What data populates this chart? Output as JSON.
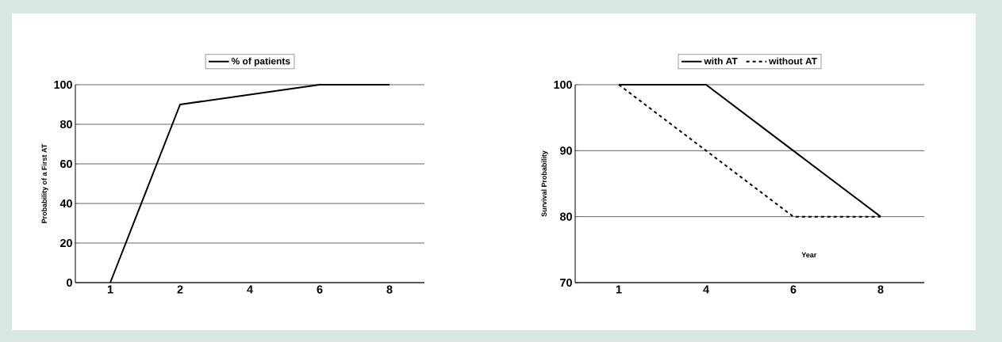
{
  "chart_data": [
    {
      "type": "line",
      "categories": [
        "1",
        "2",
        "4",
        "6",
        "8"
      ],
      "ylabel": "Probability of a First AT",
      "ylim": [
        0,
        100
      ],
      "yticks": [
        0,
        20,
        40,
        60,
        80,
        100
      ],
      "grid": "y",
      "legend": "top",
      "series": [
        {
          "name": "% of patients",
          "color": "#000000",
          "line_style": "solid",
          "values": [
            0,
            90,
            95,
            100,
            100
          ]
        }
      ]
    },
    {
      "type": "line",
      "categories": [
        "1",
        "4",
        "6",
        "8"
      ],
      "xlabel": "Year",
      "ylabel": "Survival Probability",
      "ylim": [
        70,
        100
      ],
      "yticks": [
        70,
        80,
        90,
        100
      ],
      "grid": "y",
      "legend": "top",
      "series": [
        {
          "name": "with AT",
          "color": "#000000",
          "line_style": "solid",
          "values": [
            100,
            100,
            90,
            80
          ]
        },
        {
          "name": "without AT",
          "color": "#000000",
          "line_style": "dashed",
          "values": [
            100,
            90,
            80,
            80
          ]
        }
      ]
    }
  ]
}
